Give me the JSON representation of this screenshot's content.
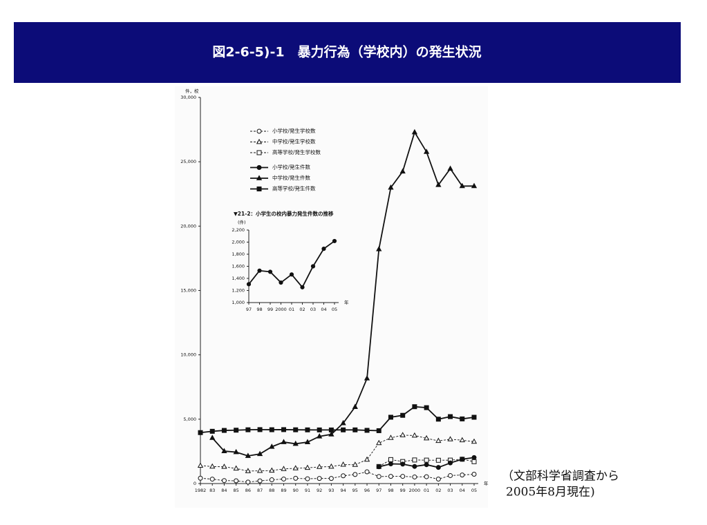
{
  "header": {
    "title": "図2-6-5)-1　暴力行為（学校内）の発生状況"
  },
  "note": {
    "lines": [
      "（文部科学省調査から",
      "2005年8月現在)"
    ]
  },
  "chart_data": [
    {
      "type": "line",
      "y_unit": "件，校",
      "x_unit": "年",
      "categories": [
        "1982",
        "83",
        "84",
        "85",
        "86",
        "87",
        "88",
        "89",
        "90",
        "91",
        "92",
        "93",
        "94",
        "95",
        "96",
        "97",
        "98",
        "99",
        "2000",
        "01",
        "02",
        "03",
        "04",
        "05"
      ],
      "ylim": [
        0,
        30000
      ],
      "yticks": [
        0,
        {
          "value": 5000,
          "label": "5,000"
        },
        {
          "value": 10000,
          "label": "10,000"
        },
        {
          "value": 15000,
          "label": "15,000"
        },
        {
          "value": 20000,
          "label": "20,000"
        },
        {
          "value": 25000,
          "label": "25,000"
        },
        {
          "value": 30000,
          "label": "30,000"
        }
      ],
      "grid": false,
      "legend": "upper left",
      "series": [
        {
          "name": "小学校/発生学校数",
          "color": "#111111",
          "marker": "circle",
          "filled": false,
          "dashed": true,
          "values": [
            415,
            345,
            231,
            213,
            114,
            209,
            292,
            352,
            408,
            372,
            396,
            397,
            603,
            705,
            910,
            546,
            557,
            560,
            513,
            532,
            348,
            620,
            665,
            725
          ]
        },
        {
          "name": "中学校/発生学校数",
          "color": "#111111",
          "marker": "triangle",
          "filled": false,
          "dashed": true,
          "values": [
            1388,
            1323,
            1300,
            1170,
            970,
            988,
            1010,
            1136,
            1187,
            1221,
            1293,
            1315,
            1470,
            1460,
            1862,
            3147,
            3550,
            3761,
            3731,
            3516,
            3317,
            3440,
            3366,
            3254
          ]
        },
        {
          "name": "高等学校/発生学校数",
          "color": "#111111",
          "marker": "square",
          "filled": false,
          "dashed": true,
          "values": [
            null,
            null,
            null,
            null,
            null,
            null,
            null,
            null,
            null,
            null,
            null,
            null,
            null,
            null,
            null,
            1324,
            1859,
            1710,
            1831,
            1818,
            1809,
            1819,
            1890,
            1701
          ]
        },
        {
          "name": "小学校/発生件数",
          "color": "#111111",
          "marker": "circle",
          "filled": true,
          "dashed": false,
          "values": [
            null,
            null,
            null,
            null,
            null,
            null,
            null,
            null,
            null,
            null,
            null,
            null,
            null,
            null,
            null,
            1304,
            1528,
            1509,
            1331,
            1465,
            1253,
            1600,
            1890,
            2018
          ]
        },
        {
          "name": "中学校/発生件数",
          "color": "#111111",
          "marker": "triangle",
          "filled": true,
          "dashed": false,
          "values": [
            null,
            3547,
            2518,
            2441,
            2148,
            2297,
            2858,
            3222,
            3090,
            3217,
            3666,
            3820,
            4693,
            5954,
            8169,
            18209,
            22991,
            24246,
            27293,
            25769,
            23199,
            24463,
            23110,
            23115
          ]
        },
        {
          "name": "高等学校/発生件数",
          "color": "#111111",
          "marker": "square",
          "filled": true,
          "dashed": false,
          "values": [
            3958,
            4060,
            4128,
            4147,
            4178,
            4190,
            4182,
            4190,
            4177,
            4170,
            4166,
            4164,
            4170,
            4169,
            4134,
            4108,
            5152,
            5300,
            5971,
            5896,
            5002,
            5201,
            5022,
            5150
          ]
        }
      ]
    },
    {
      "type": "line",
      "title": "▼21-2：小学生の校内暴力発生件数の推移",
      "y_unit": "(件)",
      "x_unit": "年",
      "categories": [
        "97",
        "98",
        "99",
        "2000",
        "01",
        "02",
        "03",
        "04",
        "05"
      ],
      "ylim": [
        1000,
        2200
      ],
      "yticks": [
        {
          "value": 1000,
          "label": "1,000"
        },
        {
          "value": 1200,
          "label": "1,200"
        },
        {
          "value": 1400,
          "label": "1,400"
        },
        {
          "value": 1600,
          "label": "1,600"
        },
        {
          "value": 1800,
          "label": "1,800"
        },
        {
          "value": 2000,
          "label": "2,000"
        },
        {
          "value": 2200,
          "label": "2,200"
        }
      ],
      "grid": false,
      "series": [
        {
          "color": "#111111",
          "marker": "circle",
          "filled": true,
          "dashed": false,
          "values": [
            1304,
            1528,
            1509,
            1331,
            1465,
            1253,
            1600,
            1890,
            2018
          ]
        }
      ]
    }
  ]
}
